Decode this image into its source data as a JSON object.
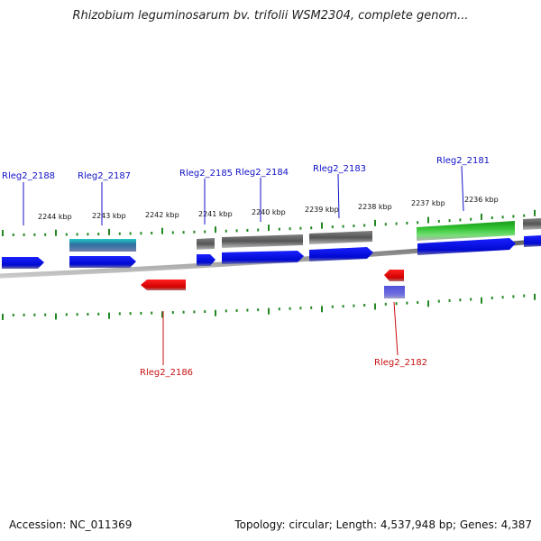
{
  "title": "Rhizobium leguminosarum bv. trifolii WSM2304, complete genom...",
  "footer": {
    "accession": "Accession: NC_011369",
    "summary": "Topology: circular; Length: 4,537,948 bp; Genes: 4,387"
  },
  "colors": {
    "forward_cds": "#0a12e8",
    "reverse_cds": "#e81010",
    "forward_label": "#1010c8",
    "reverse_label": "#c81010",
    "tick": "#228822",
    "backbone": "#8a8a8a"
  },
  "ruler": {
    "unit": "kbp",
    "ticks": [
      {
        "pos": 2236,
        "label": "2236 kbp"
      },
      {
        "pos": 2237,
        "label": "2237 kbp"
      },
      {
        "pos": 2238,
        "label": "2238 kbp"
      },
      {
        "pos": 2239,
        "label": "2239 kbp"
      },
      {
        "pos": 2240,
        "label": "2240 kbp"
      },
      {
        "pos": 2241,
        "label": "2241 kbp"
      },
      {
        "pos": 2242,
        "label": "2242 kbp"
      },
      {
        "pos": 2243,
        "label": "2243 kbp"
      },
      {
        "pos": 2244,
        "label": "2244 kbp"
      }
    ]
  },
  "gene_labels": [
    {
      "name": "Rleg2_2188",
      "strand": "+"
    },
    {
      "name": "Rleg2_2187",
      "strand": "+"
    },
    {
      "name": "Rleg2_2185",
      "strand": "+"
    },
    {
      "name": "Rleg2_2184",
      "strand": "+"
    },
    {
      "name": "Rleg2_2183",
      "strand": "+"
    },
    {
      "name": "Rleg2_2181",
      "strand": "+"
    },
    {
      "name": "Rleg2_2186",
      "strand": "-"
    },
    {
      "name": "Rleg2_2182",
      "strand": "-"
    }
  ]
}
